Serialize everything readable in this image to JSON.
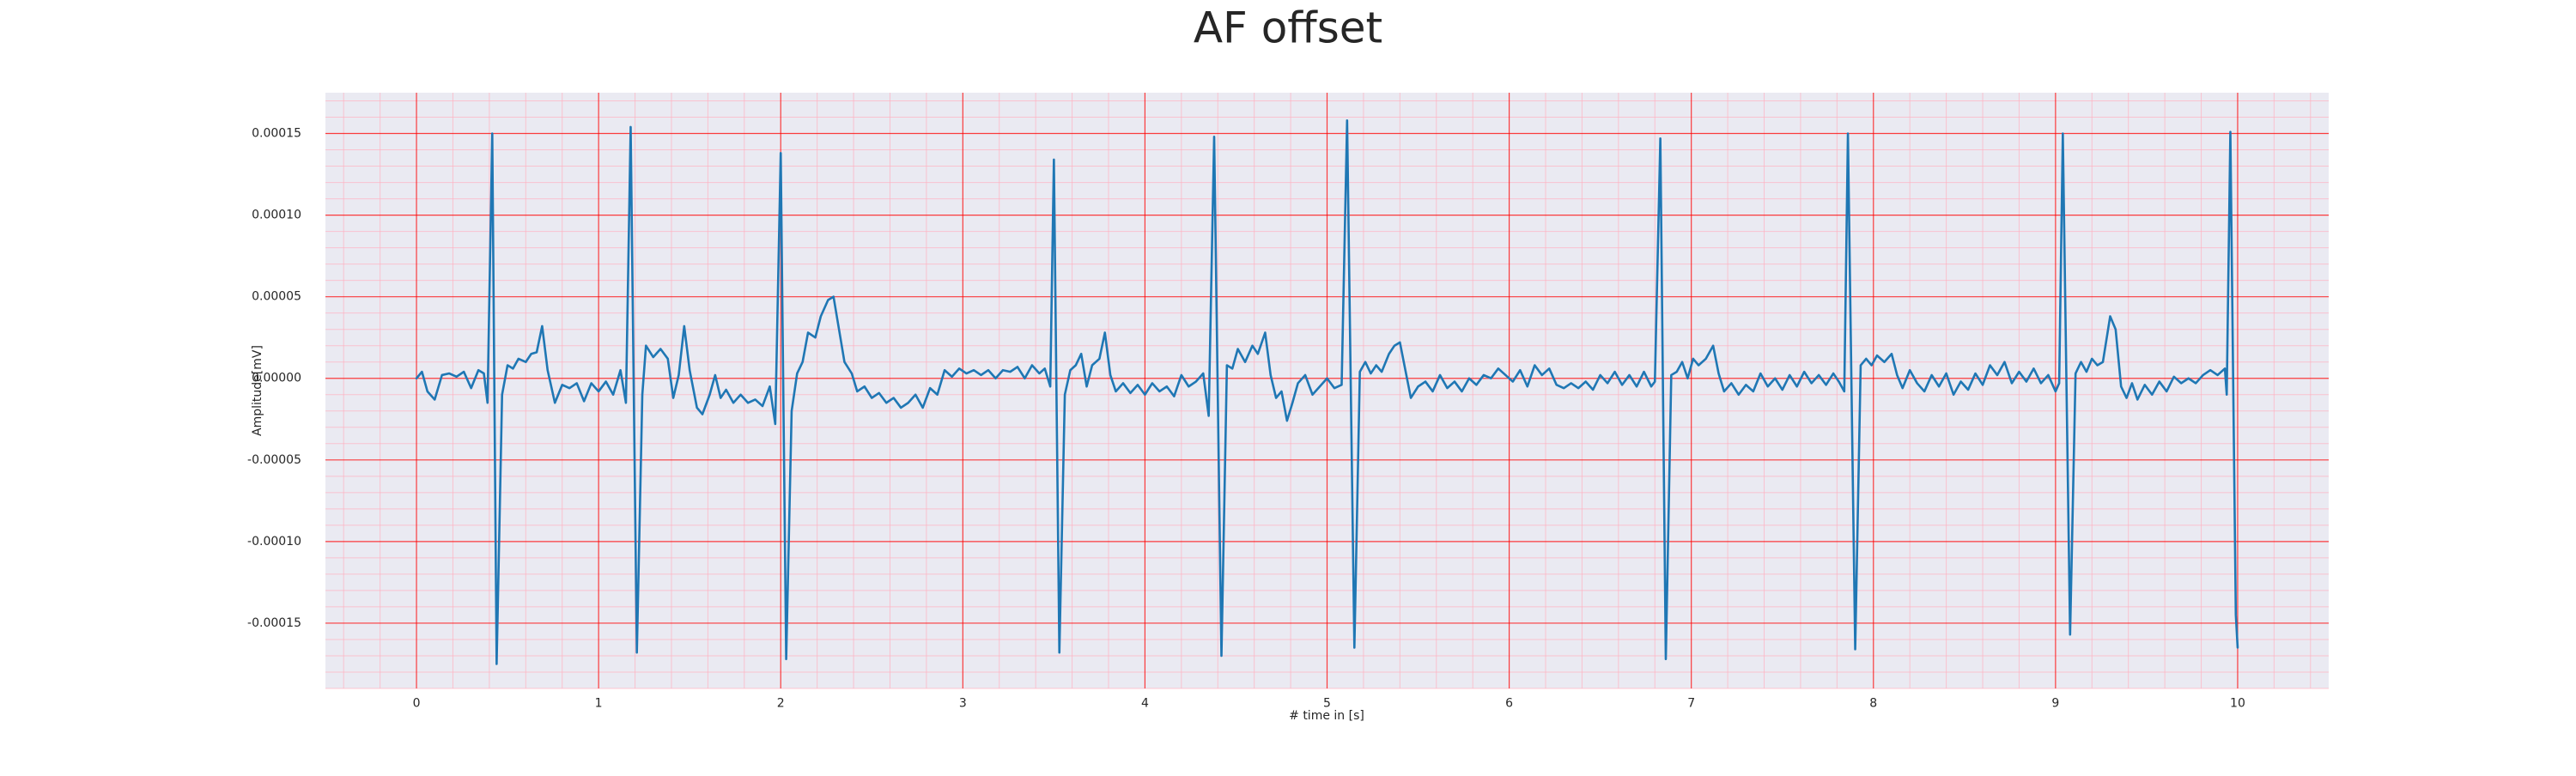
{
  "chart_data": {
    "type": "line",
    "title": "AF offset",
    "xlabel": "# time in [s]",
    "ylabel": "Amplitude[mV]",
    "xlim": [
      -0.5,
      10.5
    ],
    "ylim": [
      -0.00019,
      0.000175
    ],
    "xticks": [
      0,
      1,
      2,
      3,
      4,
      5,
      6,
      7,
      8,
      9,
      10
    ],
    "yticks": [
      {
        "value": -0.00015,
        "label": "-0.00015"
      },
      {
        "value": -0.0001,
        "label": "-0.00010"
      },
      {
        "value": -5e-05,
        "label": "-0.00005"
      },
      {
        "value": 0,
        "label": "0.00000"
      },
      {
        "value": 5e-05,
        "label": "0.00005"
      },
      {
        "value": 0.0001,
        "label": "0.00010"
      },
      {
        "value": 0.00015,
        "label": "0.00015"
      }
    ],
    "grid": true,
    "minor_grid": true,
    "grid_color": "#ff0000",
    "minor_grid_color": "#ffb0c0",
    "background": "#eaeaf2",
    "x": [
      0.0,
      0.03,
      0.06,
      0.1,
      0.14,
      0.18,
      0.22,
      0.26,
      0.3,
      0.34,
      0.37,
      0.39,
      0.416,
      0.44,
      0.47,
      0.5,
      0.53,
      0.56,
      0.6,
      0.63,
      0.66,
      0.69,
      0.72,
      0.76,
      0.8,
      0.84,
      0.88,
      0.92,
      0.96,
      1.0,
      1.04,
      1.08,
      1.12,
      1.15,
      1.176,
      1.21,
      1.24,
      1.26,
      1.3,
      1.34,
      1.38,
      1.41,
      1.44,
      1.47,
      1.5,
      1.54,
      1.57,
      1.61,
      1.64,
      1.67,
      1.7,
      1.74,
      1.78,
      1.82,
      1.86,
      1.9,
      1.94,
      1.97,
      2.0,
      2.03,
      2.06,
      2.09,
      2.12,
      2.15,
      2.19,
      2.22,
      2.26,
      2.29,
      2.32,
      2.35,
      2.39,
      2.42,
      2.46,
      2.5,
      2.54,
      2.58,
      2.62,
      2.66,
      2.7,
      2.74,
      2.78,
      2.82,
      2.86,
      2.9,
      2.94,
      2.98,
      3.02,
      3.06,
      3.1,
      3.14,
      3.18,
      3.22,
      3.26,
      3.3,
      3.34,
      3.38,
      3.42,
      3.45,
      3.48,
      3.5,
      3.53,
      3.56,
      3.59,
      3.62,
      3.65,
      3.68,
      3.71,
      3.75,
      3.78,
      3.81,
      3.84,
      3.88,
      3.92,
      3.96,
      4.0,
      4.04,
      4.08,
      4.12,
      4.16,
      4.2,
      4.24,
      4.28,
      4.32,
      4.35,
      4.38,
      4.42,
      4.45,
      4.48,
      4.51,
      4.55,
      4.59,
      4.62,
      4.66,
      4.69,
      4.72,
      4.75,
      4.78,
      4.81,
      4.84,
      4.88,
      4.92,
      4.96,
      5.0,
      5.04,
      5.08,
      5.11,
      5.15,
      5.18,
      5.21,
      5.24,
      5.27,
      5.3,
      5.34,
      5.37,
      5.4,
      5.43,
      5.46,
      5.5,
      5.54,
      5.58,
      5.62,
      5.66,
      5.7,
      5.74,
      5.78,
      5.82,
      5.86,
      5.9,
      5.94,
      5.98,
      6.02,
      6.06,
      6.1,
      6.14,
      6.18,
      6.22,
      6.26,
      6.3,
      6.34,
      6.38,
      6.42,
      6.46,
      6.5,
      6.54,
      6.58,
      6.62,
      6.66,
      6.7,
      6.74,
      6.78,
      6.8,
      6.83,
      6.86,
      6.89,
      6.92,
      6.95,
      6.98,
      7.01,
      7.04,
      7.08,
      7.12,
      7.15,
      7.18,
      7.22,
      7.26,
      7.3,
      7.34,
      7.38,
      7.42,
      7.46,
      7.5,
      7.54,
      7.58,
      7.62,
      7.66,
      7.7,
      7.74,
      7.78,
      7.81,
      7.84,
      7.86,
      7.9,
      7.93,
      7.96,
      7.99,
      8.02,
      8.06,
      8.1,
      8.13,
      8.16,
      8.2,
      8.24,
      8.28,
      8.32,
      8.36,
      8.4,
      8.44,
      8.48,
      8.52,
      8.56,
      8.6,
      8.64,
      8.68,
      8.72,
      8.76,
      8.8,
      8.84,
      8.88,
      8.92,
      8.96,
      9.0,
      9.02,
      9.04,
      9.08,
      9.11,
      9.14,
      9.17,
      9.2,
      9.23,
      9.26,
      9.3,
      9.33,
      9.36,
      9.39,
      9.42,
      9.45,
      9.49,
      9.53,
      9.57,
      9.61,
      9.65,
      9.69,
      9.73,
      9.77,
      9.81,
      9.85,
      9.89,
      9.93,
      9.94,
      9.96,
      9.99,
      10.0
    ],
    "series": [
      {
        "color": "#1f77b4",
        "values": [
          0,
          4e-06,
          -8e-06,
          -1.3e-05,
          2e-06,
          3e-06,
          1e-06,
          4e-06,
          -6e-06,
          5e-06,
          3e-06,
          -1.5e-05,
          0.00015,
          -0.000175,
          -1e-05,
          8e-06,
          6e-06,
          1.2e-05,
          1e-05,
          1.5e-05,
          1.6e-05,
          3.2e-05,
          5e-06,
          -1.5e-05,
          -4e-06,
          -6e-06,
          -3e-06,
          -1.4e-05,
          -3e-06,
          -8e-06,
          -2e-06,
          -1e-05,
          5e-06,
          -1.5e-05,
          0.000154,
          -0.000168,
          -1e-05,
          2e-05,
          1.3e-05,
          1.8e-05,
          1.2e-05,
          -1.2e-05,
          2e-06,
          3.2e-05,
          5e-06,
          -1.8e-05,
          -2.2e-05,
          -1e-05,
          2e-06,
          -1.2e-05,
          -7e-06,
          -1.5e-05,
          -1e-05,
          -1.5e-05,
          -1.3e-05,
          -1.7e-05,
          -5e-06,
          -2.8e-05,
          0.000138,
          -0.000172,
          -2e-05,
          3e-06,
          1e-05,
          2.8e-05,
          2.5e-05,
          3.8e-05,
          4.8e-05,
          5e-05,
          3e-05,
          1e-05,
          3e-06,
          -8e-06,
          -5e-06,
          -1.2e-05,
          -9e-06,
          -1.5e-05,
          -1.2e-05,
          -1.8e-05,
          -1.5e-05,
          -1e-05,
          -1.8e-05,
          -6e-06,
          -1e-05,
          5e-06,
          1e-06,
          6e-06,
          3e-06,
          5e-06,
          2e-06,
          5e-06,
          0.0,
          5e-06,
          4e-06,
          7e-06,
          0.0,
          8e-06,
          3e-06,
          6e-06,
          -5e-06,
          0.000134,
          -0.000168,
          -1e-05,
          5e-06,
          8e-06,
          1.5e-05,
          -5e-06,
          8e-06,
          1.2e-05,
          2.8e-05,
          2e-06,
          -8e-06,
          -3e-06,
          -9e-06,
          -4e-06,
          -1e-05,
          -3e-06,
          -8e-06,
          -5e-06,
          -1.1e-05,
          2e-06,
          -5e-06,
          -2e-06,
          3e-06,
          -2.3e-05,
          0.000148,
          -0.00017,
          8e-06,
          6e-06,
          1.8e-05,
          1e-05,
          2e-05,
          1.5e-05,
          2.8e-05,
          2e-06,
          -1.2e-05,
          -8e-06,
          -2.6e-05,
          -1.5e-05,
          -3e-06,
          2e-06,
          -1e-05,
          -5e-06,
          0.0,
          -6e-06,
          -4e-06,
          0.000158,
          -0.000165,
          4e-06,
          1e-05,
          3e-06,
          8e-06,
          4e-06,
          1.5e-05,
          2e-05,
          2.2e-05,
          5e-06,
          -1.2e-05,
          -5e-06,
          -2e-06,
          -8e-06,
          2e-06,
          -6e-06,
          -2e-06,
          -8e-06,
          0.0,
          -4e-06,
          2e-06,
          0.0,
          6e-06,
          2e-06,
          -2e-06,
          5e-06,
          -5e-06,
          8e-06,
          2e-06,
          6e-06,
          -4e-06,
          -6e-06,
          -3e-06,
          -6e-06,
          -2e-06,
          -7e-06,
          2e-06,
          -3e-06,
          4e-06,
          -4e-06,
          2e-06,
          -5e-06,
          4e-06,
          -5e-06,
          -2e-06,
          0.000147,
          -0.000172,
          2e-06,
          4e-06,
          1e-05,
          0.0,
          1.2e-05,
          8e-06,
          1.2e-05,
          2e-05,
          3e-06,
          -8e-06,
          -3e-06,
          -1e-05,
          -4e-06,
          -8e-06,
          3e-06,
          -5e-06,
          0.0,
          -7e-06,
          2e-06,
          -5e-06,
          4e-06,
          -3e-06,
          2e-06,
          -4e-06,
          3e-06,
          -2e-06,
          -8e-06,
          0.00015,
          -0.000166,
          8e-06,
          1.2e-05,
          8e-06,
          1.4e-05,
          1e-05,
          1.5e-05,
          2e-06,
          -6e-06,
          5e-06,
          -3e-06,
          -8e-06,
          2e-06,
          -5e-06,
          3e-06,
          -1e-05,
          -2e-06,
          -7e-06,
          3e-06,
          -4e-06,
          8e-06,
          2e-06,
          1e-05,
          -3e-06,
          4e-06,
          -2e-06,
          6e-06,
          -3e-06,
          2e-06,
          -8e-06,
          -3e-06,
          0.00015,
          -0.000157,
          3e-06,
          1e-05,
          4e-06,
          1.2e-05,
          8e-06,
          1e-05,
          3.8e-05,
          3e-05,
          -5e-06,
          -1.2e-05,
          -3e-06,
          -1.3e-05,
          -4e-06,
          -1e-05,
          -2e-06,
          -8e-06,
          1e-06,
          -3e-06,
          0.0,
          -3e-06,
          2e-06,
          5e-06,
          2e-06,
          6e-06,
          -1e-05,
          0.000151,
          -0.000145,
          -0.000165
        ]
      }
    ]
  }
}
